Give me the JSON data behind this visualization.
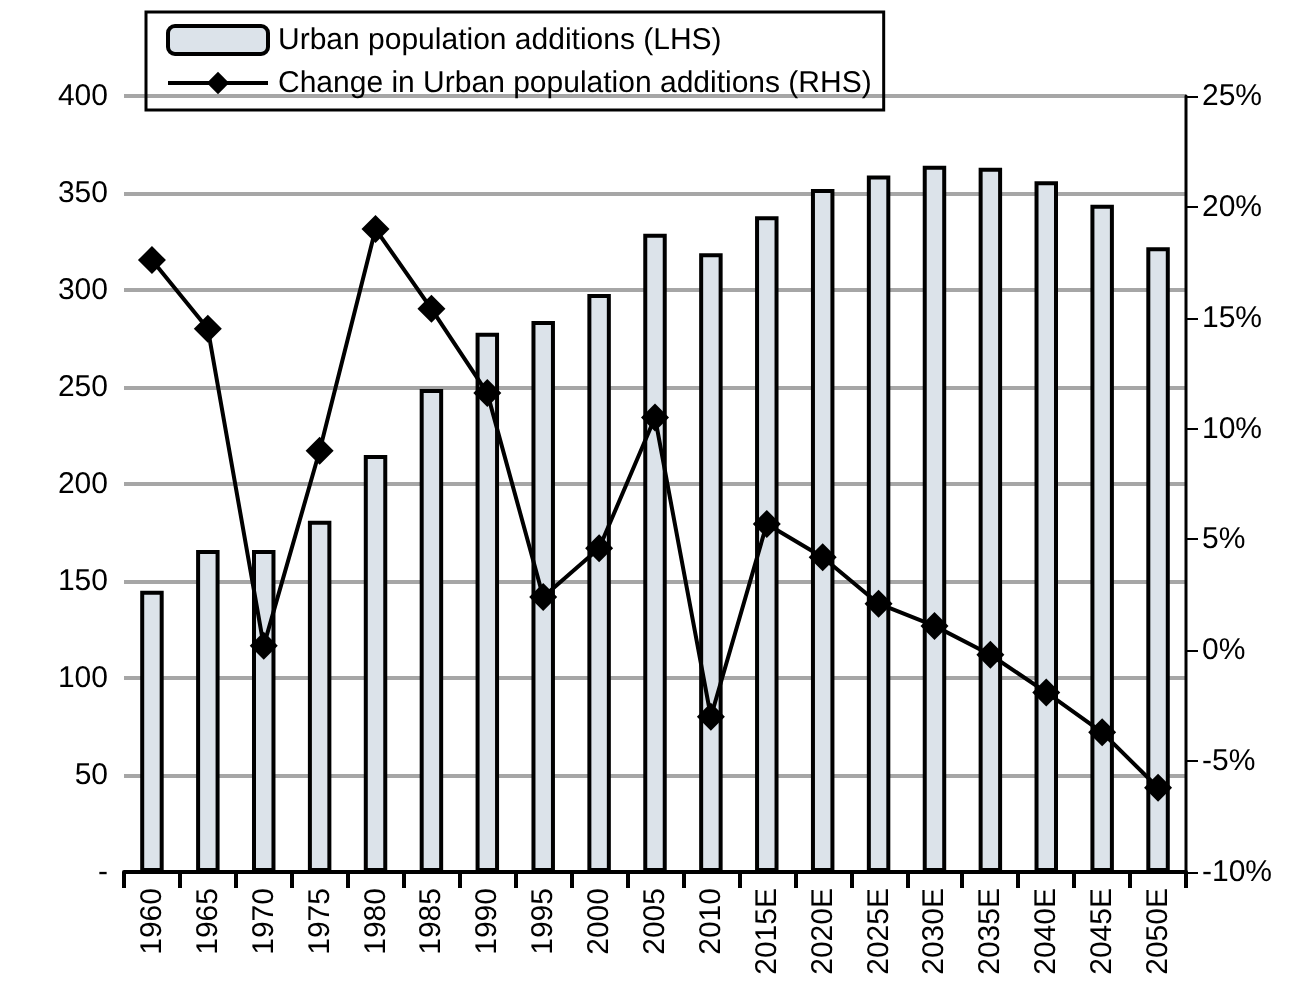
{
  "chart_data": {
    "type": "bar",
    "categories": [
      "1960",
      "1965",
      "1970",
      "1975",
      "1980",
      "1985",
      "1990",
      "1995",
      "2000",
      "2005",
      "2010",
      "2015E",
      "2020E",
      "2025E",
      "2030E",
      "2035E",
      "2040E",
      "2045E",
      "2050E"
    ],
    "series": [
      {
        "name": "Urban population additions (LHS)",
        "color": "#dce3ea",
        "values": [
          145,
          166,
          166,
          181,
          215,
          249,
          278,
          284,
          298,
          329,
          319,
          338,
          352,
          359,
          364,
          363,
          356,
          344,
          322
        ]
      },
      {
        "name": "Change in Urban population additions (RHS)",
        "type": "line",
        "axis": "y2",
        "color": "#000000",
        "marker": "diamond",
        "values": [
          17.6,
          14.5,
          0.2,
          9.0,
          19.0,
          15.4,
          11.6,
          2.4,
          4.6,
          10.5,
          -3.0,
          5.7,
          4.2,
          2.1,
          1.1,
          -0.2,
          -1.9,
          -3.7,
          -6.2
        ]
      }
    ],
    "ylim": [
      0,
      400
    ],
    "yticks": [
      {
        "value": 0,
        "label": "-"
      },
      50,
      100,
      150,
      200,
      250,
      300,
      350,
      400
    ],
    "y2lim": [
      -10,
      25
    ],
    "y2ticks": [
      {
        "value": -10,
        "label": "-10%"
      },
      {
        "value": -5,
        "label": "-5%"
      },
      {
        "value": 0,
        "label": "0%"
      },
      {
        "value": 5,
        "label": "5%"
      },
      {
        "value": 10,
        "label": "10%"
      },
      {
        "value": 15,
        "label": "15%"
      },
      {
        "value": 20,
        "label": "20%"
      },
      {
        "value": 25,
        "label": "25%"
      }
    ],
    "grid": "y",
    "legend": "top left"
  }
}
